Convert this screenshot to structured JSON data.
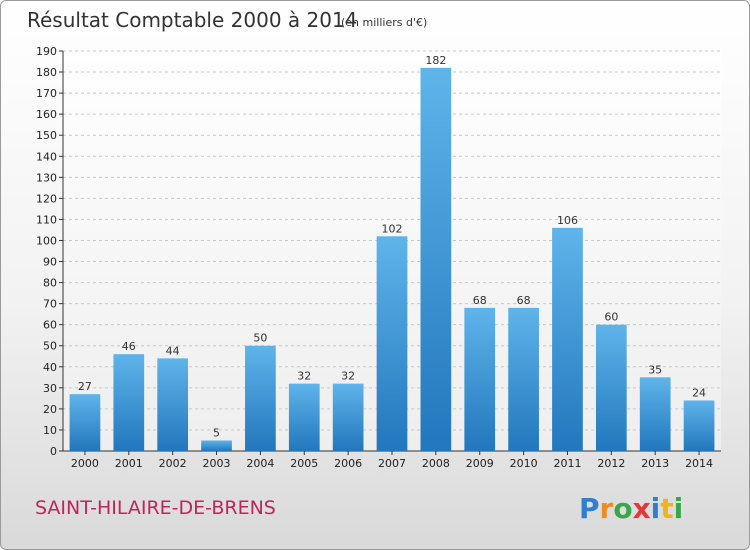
{
  "header": {
    "title": "Résultat Comptable 2000 à 2014",
    "unit": "(en milliers d'€)"
  },
  "footer": {
    "commune": "SAINT-HILAIRE-DE-BRENS",
    "logo": "Proxiti"
  },
  "chart_data": {
    "type": "bar",
    "title": "Résultat Comptable 2000 à 2014",
    "subtitle": "(en milliers d'€)",
    "xlabel": "",
    "ylabel": "",
    "categories": [
      "2000",
      "2001",
      "2002",
      "2003",
      "2004",
      "2005",
      "2006",
      "2007",
      "2008",
      "2009",
      "2010",
      "2011",
      "2012",
      "2013",
      "2014"
    ],
    "values": [
      27,
      46,
      44,
      5,
      50,
      32,
      32,
      102,
      182,
      68,
      68,
      106,
      60,
      35,
      24
    ],
    "ylim": [
      0,
      190
    ],
    "ytick_step": 10,
    "grid": true,
    "data_labels": true,
    "legend": "none",
    "colors": {
      "bar_light": "#5fb4ea",
      "bar_dark": "#2277bd",
      "grid": "#c8c8c8"
    }
  }
}
